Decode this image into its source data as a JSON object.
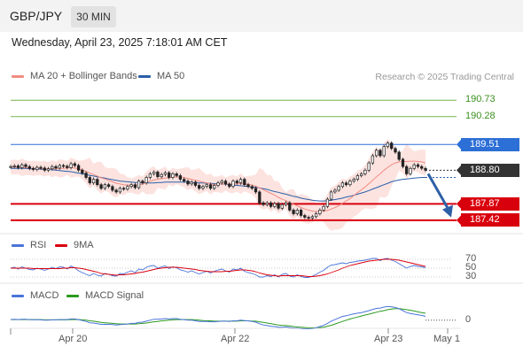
{
  "header": {
    "symbol": "GBP/JPY",
    "timeframe": "30 MIN"
  },
  "datetime": "Wednesday, April 23, 2025 7:18:01 AM CET",
  "legend_main": [
    {
      "label": "MA 20 + Bollinger Bands",
      "color": "#f28b82"
    },
    {
      "label": "MA 50",
      "color": "#2a5ea8"
    }
  ],
  "credit": "Research © 2025 Trading Central",
  "legend_rsi": [
    {
      "label": "RSI",
      "color": "#4a74d8"
    },
    {
      "label": "9MA",
      "color": "#d9000d"
    }
  ],
  "legend_macd": [
    {
      "label": "MACD",
      "color": "#4a74d8"
    },
    {
      "label": "MACD Signal",
      "color": "#2b9a1f"
    }
  ],
  "colors": {
    "resistance": "#2c6fd6",
    "support": "#d9000d",
    "target": "#74b34a",
    "current": "#333333",
    "arrow": "#2d5fa6",
    "candle_up": "#ffffff",
    "candle_down": "#222222"
  },
  "chart_data": {
    "type": "candlestick",
    "x_tick_labels": [
      "Apr 20",
      "Apr 22",
      "Apr 23",
      "May 1"
    ],
    "price_levels": [
      {
        "label": "190.73",
        "value": 190.73,
        "kind": "target"
      },
      {
        "label": "190.28",
        "value": 190.28,
        "kind": "target"
      },
      {
        "label": "189.51",
        "value": 189.51,
        "kind": "resistance"
      },
      {
        "label": "188.80",
        "value": 188.8,
        "kind": "current"
      },
      {
        "label": "187.87",
        "value": 187.87,
        "kind": "support"
      },
      {
        "label": "187.42",
        "value": 187.42,
        "kind": "support"
      }
    ],
    "price_range": [
      187.05,
      191.25
    ],
    "close_series": [
      188.9,
      188.92,
      188.87,
      188.95,
      188.9,
      188.85,
      188.82,
      188.88,
      188.86,
      188.8,
      188.84,
      188.9,
      188.86,
      188.93,
      188.91,
      188.87,
      188.98,
      188.93,
      188.8,
      188.72,
      188.6,
      188.45,
      188.55,
      188.4,
      188.3,
      188.4,
      188.35,
      188.25,
      188.2,
      188.3,
      188.28,
      188.35,
      188.4,
      188.32,
      188.5,
      188.45,
      188.6,
      188.7,
      188.75,
      188.62,
      188.68,
      188.73,
      188.6,
      188.7,
      188.65,
      188.55,
      188.5,
      188.42,
      188.47,
      188.38,
      188.3,
      188.35,
      188.4,
      188.3,
      188.38,
      188.45,
      188.5,
      188.42,
      188.35,
      188.5,
      188.45,
      188.55,
      188.4,
      188.35,
      188.3,
      188.2,
      187.9,
      187.85,
      187.9,
      187.8,
      187.88,
      187.75,
      187.85,
      187.9,
      187.7,
      187.6,
      187.7,
      187.55,
      187.5,
      187.48,
      187.52,
      187.6,
      187.7,
      187.8,
      188.0,
      188.2,
      188.25,
      188.35,
      188.45,
      188.4,
      188.5,
      188.55,
      188.65,
      188.7,
      188.8,
      189.0,
      189.2,
      189.35,
      189.2,
      189.45,
      189.55,
      189.4,
      189.3,
      189.1,
      188.9,
      188.7,
      188.85,
      188.95,
      188.9,
      188.85,
      188.8
    ],
    "ma20": [
      188.89,
      188.89,
      188.88,
      188.88,
      188.87,
      188.86,
      188.85,
      188.86,
      188.85,
      188.84,
      188.84,
      188.84,
      188.84,
      188.85,
      188.85,
      188.86,
      188.87,
      188.86,
      188.84,
      188.81,
      188.77,
      188.72,
      188.68,
      188.64,
      188.59,
      188.56,
      188.52,
      188.48,
      188.44,
      188.42,
      188.4,
      188.39,
      188.38,
      188.38,
      188.4,
      188.42,
      188.45,
      188.5,
      188.53,
      188.55,
      188.57,
      188.58,
      188.59,
      188.61,
      188.62,
      188.61,
      188.6,
      188.57,
      188.55,
      188.52,
      188.5,
      188.47,
      188.45,
      188.42,
      188.41,
      188.41,
      188.42,
      188.42,
      188.41,
      188.42,
      188.42,
      188.43,
      188.42,
      188.41,
      188.39,
      188.36,
      188.31,
      188.26,
      188.21,
      188.16,
      188.11,
      188.05,
      188.0,
      187.96,
      187.91,
      187.86,
      187.82,
      187.77,
      187.73,
      187.7,
      187.67,
      187.66,
      187.66,
      187.67,
      187.69,
      187.73,
      187.77,
      187.82,
      187.89,
      187.95,
      188.02,
      188.1,
      188.18,
      188.26,
      188.34,
      188.43,
      188.52,
      188.62,
      188.7,
      188.8,
      188.88,
      188.95,
      189.0,
      189.03,
      189.04,
      189.04,
      189.05,
      189.05,
      189.04,
      189.03,
      189.0
    ],
    "bollinger_width": 0.18,
    "ma50": [
      188.85,
      188.85,
      188.85,
      188.85,
      188.85,
      188.84,
      188.84,
      188.84,
      188.83,
      188.83,
      188.82,
      188.81,
      188.8,
      188.79,
      188.78,
      188.77,
      188.76,
      188.74,
      188.72,
      188.7,
      188.68,
      188.66,
      188.64,
      188.62,
      188.6,
      188.58,
      188.56,
      188.54,
      188.52,
      188.5,
      188.49,
      188.48,
      188.47,
      188.46,
      188.46,
      188.45,
      188.45,
      188.45,
      188.45,
      188.46,
      188.46,
      188.47,
      188.47,
      188.47,
      188.47,
      188.47,
      188.47,
      188.47,
      188.46,
      188.46,
      188.45,
      188.45,
      188.44,
      188.44,
      188.43,
      188.42,
      188.42,
      188.41,
      188.4,
      188.39,
      188.38,
      188.37,
      188.36,
      188.35,
      188.34,
      188.33,
      188.31,
      188.29,
      188.27,
      188.24,
      188.21,
      188.19,
      188.16,
      188.14,
      188.11,
      188.08,
      188.06,
      188.03,
      188.01,
      187.99,
      187.97,
      187.96,
      187.95,
      187.95,
      187.96,
      187.97,
      187.99,
      188.01,
      188.03,
      188.06,
      188.08,
      188.11,
      188.14,
      188.17,
      188.2,
      188.24,
      188.28,
      188.32,
      188.36,
      188.4,
      188.44,
      188.48,
      188.51,
      188.53,
      188.55,
      188.56,
      188.57,
      188.58,
      188.59,
      188.6,
      188.6
    ],
    "rsi_range": [
      20,
      80
    ],
    "rsi_ticks": [
      70,
      50,
      30
    ],
    "rsi": [
      50,
      52,
      48,
      53,
      50,
      47,
      46,
      50,
      48,
      45,
      48,
      52,
      49,
      53,
      52,
      48,
      55,
      51,
      44,
      40,
      36,
      33,
      38,
      34,
      32,
      38,
      36,
      33,
      32,
      38,
      37,
      41,
      44,
      40,
      48,
      46,
      52,
      55,
      56,
      50,
      53,
      55,
      49,
      53,
      51,
      46,
      44,
      41,
      44,
      40,
      37,
      40,
      43,
      39,
      43,
      46,
      48,
      44,
      41,
      48,
      46,
      50,
      43,
      40,
      38,
      35,
      30,
      30,
      33,
      31,
      35,
      30,
      36,
      38,
      32,
      30,
      35,
      31,
      29,
      29,
      32,
      36,
      41,
      45,
      52,
      57,
      58,
      60,
      62,
      60,
      63,
      64,
      66,
      67,
      68,
      70,
      72,
      72,
      67,
      71,
      72,
      68,
      65,
      60,
      55,
      50,
      54,
      56,
      54,
      53,
      51
    ],
    "rsi_ma": [
      50,
      50,
      50,
      50,
      50,
      50,
      49,
      49,
      49,
      49,
      49,
      49,
      49,
      49,
      50,
      50,
      51,
      51,
      50,
      49,
      47,
      45,
      43,
      41,
      38,
      37,
      36,
      35,
      34,
      35,
      35,
      36,
      37,
      38,
      40,
      41,
      43,
      45,
      47,
      49,
      50,
      51,
      52,
      52,
      52,
      51,
      50,
      49,
      48,
      47,
      45,
      44,
      43,
      42,
      42,
      42,
      42,
      43,
      43,
      44,
      45,
      46,
      46,
      45,
      44,
      42,
      39,
      37,
      35,
      34,
      33,
      32,
      33,
      33,
      33,
      33,
      33,
      33,
      32,
      31,
      31,
      32,
      33,
      35,
      37,
      40,
      43,
      46,
      50,
      53,
      56,
      58,
      60,
      62,
      64,
      66,
      67,
      68,
      69,
      70,
      70,
      70,
      69,
      68,
      66,
      64,
      62,
      60,
      58,
      56,
      54
    ],
    "macd_range": [
      -0.45,
      0.55
    ],
    "macd_ticks": [
      0
    ],
    "macd": [
      0.02,
      0.03,
      0.02,
      0.03,
      0.03,
      0.02,
      0.01,
      0.02,
      0.01,
      0.0,
      0.0,
      0.01,
      0.01,
      0.02,
      0.02,
      0.02,
      0.04,
      0.04,
      0.02,
      -0.01,
      -0.04,
      -0.08,
      -0.09,
      -0.11,
      -0.13,
      -0.13,
      -0.13,
      -0.14,
      -0.15,
      -0.14,
      -0.13,
      -0.12,
      -0.1,
      -0.1,
      -0.07,
      -0.06,
      -0.03,
      0.0,
      0.03,
      0.03,
      0.04,
      0.05,
      0.04,
      0.05,
      0.05,
      0.03,
      0.02,
      0.0,
      0.0,
      -0.02,
      -0.04,
      -0.04,
      -0.04,
      -0.05,
      -0.05,
      -0.04,
      -0.03,
      -0.03,
      -0.04,
      -0.02,
      -0.02,
      0.0,
      -0.01,
      -0.02,
      -0.04,
      -0.06,
      -0.11,
      -0.15,
      -0.17,
      -0.19,
      -0.2,
      -0.22,
      -0.22,
      -0.21,
      -0.23,
      -0.25,
      -0.25,
      -0.26,
      -0.27,
      -0.27,
      -0.26,
      -0.24,
      -0.2,
      -0.16,
      -0.1,
      -0.03,
      0.02,
      0.07,
      0.12,
      0.14,
      0.17,
      0.2,
      0.22,
      0.24,
      0.27,
      0.3,
      0.34,
      0.37,
      0.38,
      0.41,
      0.43,
      0.42,
      0.4,
      0.36,
      0.3,
      0.24,
      0.21,
      0.19,
      0.17,
      0.15,
      0.12
    ],
    "macd_signal": [
      0.02,
      0.02,
      0.02,
      0.02,
      0.02,
      0.02,
      0.02,
      0.02,
      0.02,
      0.01,
      0.01,
      0.01,
      0.01,
      0.01,
      0.01,
      0.01,
      0.02,
      0.02,
      0.02,
      0.01,
      0.0,
      -0.02,
      -0.03,
      -0.05,
      -0.07,
      -0.08,
      -0.09,
      -0.1,
      -0.11,
      -0.12,
      -0.12,
      -0.12,
      -0.12,
      -0.12,
      -0.11,
      -0.1,
      -0.09,
      -0.07,
      -0.05,
      -0.04,
      -0.02,
      -0.01,
      0.0,
      0.01,
      0.02,
      0.02,
      0.02,
      0.02,
      0.02,
      0.01,
      0.0,
      -0.01,
      -0.02,
      -0.02,
      -0.03,
      -0.03,
      -0.03,
      -0.03,
      -0.03,
      -0.03,
      -0.03,
      -0.02,
      -0.02,
      -0.02,
      -0.03,
      -0.03,
      -0.05,
      -0.07,
      -0.09,
      -0.11,
      -0.13,
      -0.15,
      -0.16,
      -0.17,
      -0.18,
      -0.2,
      -0.21,
      -0.22,
      -0.23,
      -0.24,
      -0.24,
      -0.24,
      -0.23,
      -0.22,
      -0.19,
      -0.16,
      -0.12,
      -0.08,
      -0.04,
      0.0,
      0.04,
      0.07,
      0.1,
      0.13,
      0.16,
      0.19,
      0.22,
      0.25,
      0.28,
      0.3,
      0.33,
      0.35,
      0.36,
      0.36,
      0.35,
      0.33,
      0.31,
      0.29,
      0.26,
      0.24,
      0.22
    ]
  }
}
